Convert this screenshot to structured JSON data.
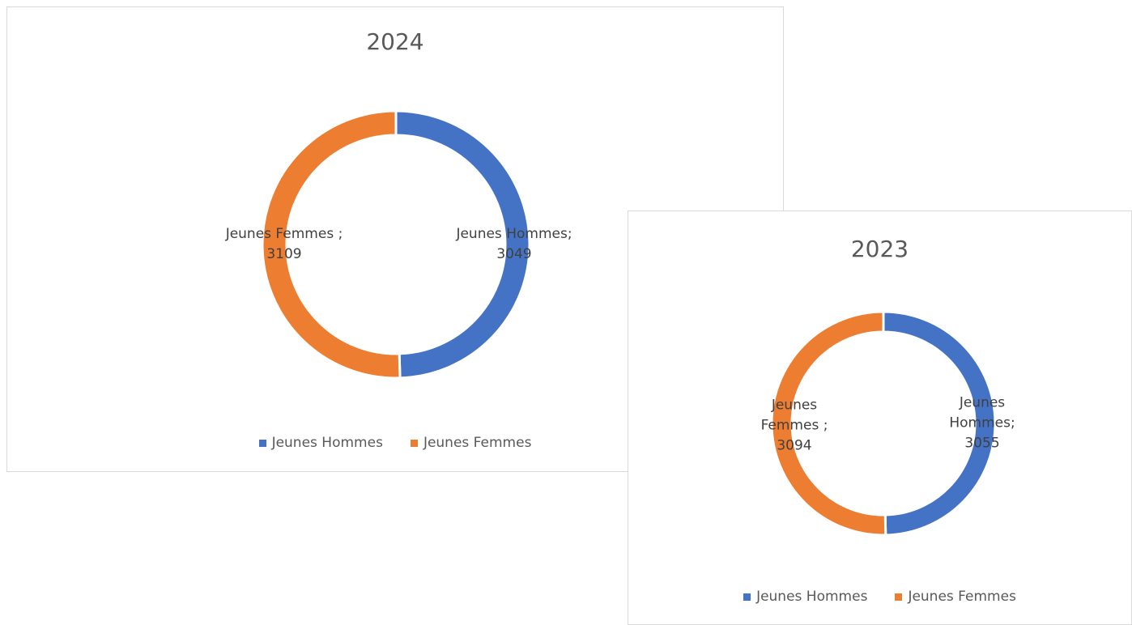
{
  "chart_data": [
    {
      "type": "doughnut",
      "title": "2024",
      "categories": [
        "Jeunes Hommes",
        "Jeunes Femmes"
      ],
      "values": [
        3049,
        3109
      ],
      "value_labels": [
        "Jeunes Hommes;\n3049",
        "Jeunes Femmes ;\n3109"
      ],
      "colors": [
        "#4472c4",
        "#ed7d31"
      ],
      "legend": "bottom"
    },
    {
      "type": "doughnut",
      "title": "2023",
      "categories": [
        "Jeunes Hommes",
        "Jeunes Femmes"
      ],
      "values": [
        3055,
        3094
      ],
      "value_labels": [
        "Jeunes\nHommes;\n3055",
        "Jeunes\nFemmes ;\n3094"
      ],
      "colors": [
        "#4472c4",
        "#ed7d31"
      ],
      "legend": "bottom"
    }
  ]
}
